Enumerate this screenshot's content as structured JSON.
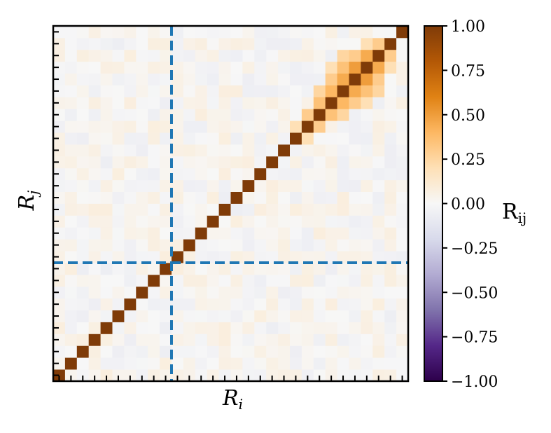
{
  "chart_data": {
    "type": "heatmap",
    "title": "",
    "xlabel": "R_i",
    "ylabel": "R_j",
    "grid_size": 30,
    "x_ticks_count": 30,
    "y_ticks_count": 30,
    "divider_index": 10,
    "diagonal_value": 1.0,
    "colorbar": {
      "label": "R_ij",
      "vmin": -1.0,
      "vmax": 1.0,
      "ticks": [
        1.0,
        0.75,
        0.5,
        0.25,
        0.0,
        -0.25,
        -0.5,
        -0.75,
        -1.0
      ],
      "tick_labels": [
        "1.00",
        "0.75",
        "0.50",
        "0.25",
        "0.00",
        "−0.25",
        "−0.50",
        "−0.75",
        "−1.00"
      ],
      "colormap": "PuOr_r"
    },
    "divider_color": "#1f77b4",
    "highlight_pairs": [
      {
        "i": 22,
        "j": 21,
        "value": 0.3
      },
      {
        "i": 21,
        "j": 22,
        "value": 0.3
      },
      {
        "i": 23,
        "j": 22,
        "value": 0.35
      },
      {
        "i": 22,
        "j": 23,
        "value": 0.35
      },
      {
        "i": 24,
        "j": 23,
        "value": 0.4
      },
      {
        "i": 23,
        "j": 24,
        "value": 0.4
      },
      {
        "i": 25,
        "j": 24,
        "value": 0.45
      },
      {
        "i": 24,
        "j": 25,
        "value": 0.45
      },
      {
        "i": 26,
        "j": 25,
        "value": 0.5
      },
      {
        "i": 25,
        "j": 26,
        "value": 0.5
      },
      {
        "i": 27,
        "j": 26,
        "value": 0.45
      },
      {
        "i": 26,
        "j": 27,
        "value": 0.45
      },
      {
        "i": 28,
        "j": 27,
        "value": 0.3
      },
      {
        "i": 27,
        "j": 28,
        "value": 0.3
      },
      {
        "i": 24,
        "j": 22,
        "value": 0.25
      },
      {
        "i": 22,
        "j": 24,
        "value": 0.25
      },
      {
        "i": 25,
        "j": 23,
        "value": 0.3
      },
      {
        "i": 23,
        "j": 25,
        "value": 0.3
      },
      {
        "i": 26,
        "j": 24,
        "value": 0.35
      },
      {
        "i": 24,
        "j": 26,
        "value": 0.35
      },
      {
        "i": 27,
        "j": 25,
        "value": 0.3
      },
      {
        "i": 25,
        "j": 27,
        "value": 0.3
      },
      {
        "i": 26,
        "j": 23,
        "value": 0.2
      },
      {
        "i": 23,
        "j": 26,
        "value": 0.2
      },
      {
        "i": 27,
        "j": 24,
        "value": 0.25
      },
      {
        "i": 24,
        "j": 27,
        "value": 0.25
      },
      {
        "i": 28,
        "j": 26,
        "value": 0.2
      },
      {
        "i": 26,
        "j": 28,
        "value": 0.2
      },
      {
        "i": 21,
        "j": 20,
        "value": 0.2
      },
      {
        "i": 20,
        "j": 21,
        "value": 0.2
      }
    ]
  }
}
